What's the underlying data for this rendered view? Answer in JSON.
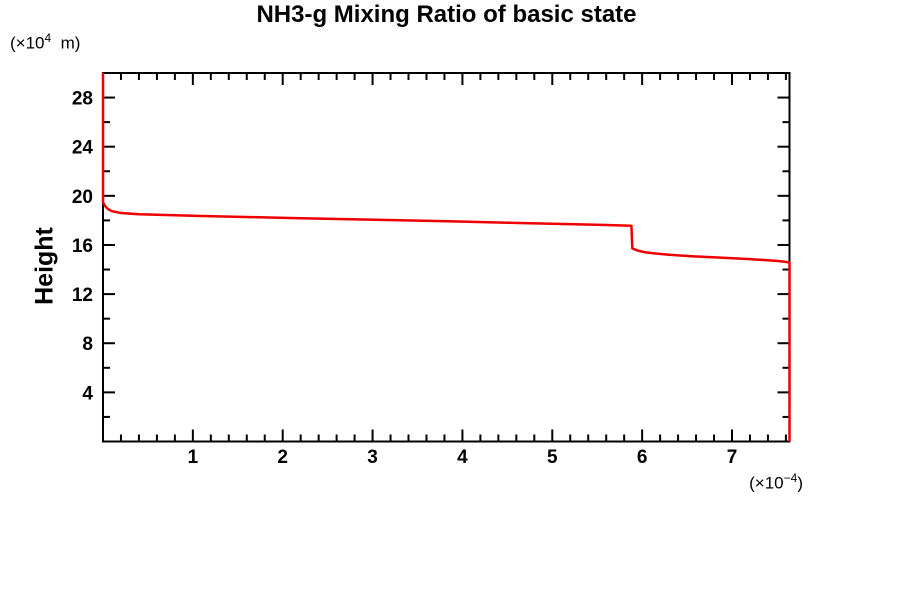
{
  "chart_data": {
    "type": "line",
    "title": "NH3-g Mixing Ratio of basic state",
    "ylabel": "Height",
    "y_unit": {
      "open": "(×10",
      "exp": "4",
      "close": "  m)"
    },
    "x_unit": {
      "open": "(×10",
      "exp": "−4",
      "close": ")"
    },
    "xlim": [
      0,
      7.64
    ],
    "ylim": [
      0,
      30
    ],
    "x_ticks": [
      1,
      2,
      3,
      4,
      5,
      6,
      7
    ],
    "y_ticks": [
      4,
      8,
      12,
      16,
      20,
      24,
      28
    ],
    "x_minor_step": 0.2,
    "y_minor_step": 2,
    "grid": false,
    "legend_position": "none",
    "line_color": "#ee0000",
    "axis_color": "#000000",
    "background_color": "#ffffff",
    "series": [
      {
        "points": [
          [
            0.0,
            30.0
          ],
          [
            0.0,
            19.5
          ],
          [
            0.02,
            19.2
          ],
          [
            0.05,
            18.95
          ],
          [
            0.1,
            18.75
          ],
          [
            0.2,
            18.6
          ],
          [
            0.4,
            18.5
          ],
          [
            0.7,
            18.44
          ],
          [
            1.1,
            18.36
          ],
          [
            1.65,
            18.27
          ],
          [
            2.2,
            18.18
          ],
          [
            2.75,
            18.1
          ],
          [
            3.3,
            18.02
          ],
          [
            3.9,
            17.92
          ],
          [
            4.45,
            17.82
          ],
          [
            5.0,
            17.72
          ],
          [
            5.55,
            17.63
          ],
          [
            5.88,
            17.57
          ],
          [
            5.89,
            15.72
          ],
          [
            5.95,
            15.55
          ],
          [
            6.02,
            15.42
          ],
          [
            6.12,
            15.32
          ],
          [
            6.3,
            15.2
          ],
          [
            6.55,
            15.08
          ],
          [
            6.9,
            14.96
          ],
          [
            7.2,
            14.85
          ],
          [
            7.5,
            14.7
          ],
          [
            7.64,
            14.58
          ],
          [
            7.64,
            0.0
          ]
        ]
      }
    ]
  }
}
